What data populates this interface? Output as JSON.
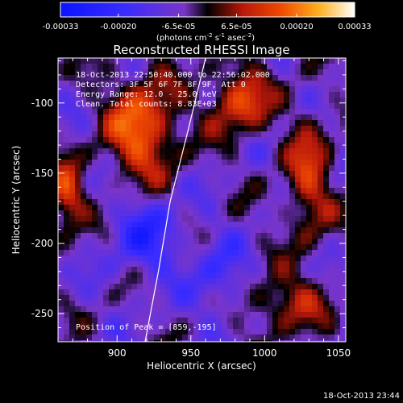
{
  "colorbar": {
    "tick_labels": [
      "-0.00033",
      "-0.00020",
      "-6.5e-05",
      "6.5e-05",
      "0.00020",
      "0.00033"
    ],
    "tick_values": [
      -0.00033,
      -0.0002,
      -6.5e-05,
      6.5e-05,
      0.0002,
      0.00033
    ],
    "units_main": "(photons cm",
    "units_exp1": "-2",
    "units_mid": " s",
    "units_exp2": "-1",
    "units_tail": " asec",
    "units_exp3": "-2",
    "units_close": ")",
    "range": [
      -0.00033,
      0.00033
    ]
  },
  "chart_data": {
    "type": "heatmap",
    "title": "Reconstructed RHESSI Image",
    "xlabel": "Heliocentric X (arcsec)",
    "ylabel": "Heliocentric Y (arcsec)",
    "xlim": [
      860,
      1055
    ],
    "ylim": [
      -270,
      -68
    ],
    "xticks": [
      900,
      950,
      1000,
      1050
    ],
    "yticks": [
      -100,
      -150,
      -200,
      -250
    ],
    "limb_curve": [
      [
        960,
        -68
      ],
      [
        948,
        -120
      ],
      [
        936,
        -170
      ],
      [
        928,
        -220
      ],
      [
        919,
        -270
      ]
    ],
    "annotations": [
      "18-Oct-2013 22:50:40.000 to 22:56:02.000",
      "Detectors: 3F 5F 6F 7F 8F 9F, Att 0",
      "Energy Range: 12.0 - 25.0 keV",
      "Clean.    Total counts: 8.83E+03"
    ],
    "peak_label": "Position of Peak = [859,-195]"
  },
  "footer_timestamp": "18-Oct-2013 23:44"
}
